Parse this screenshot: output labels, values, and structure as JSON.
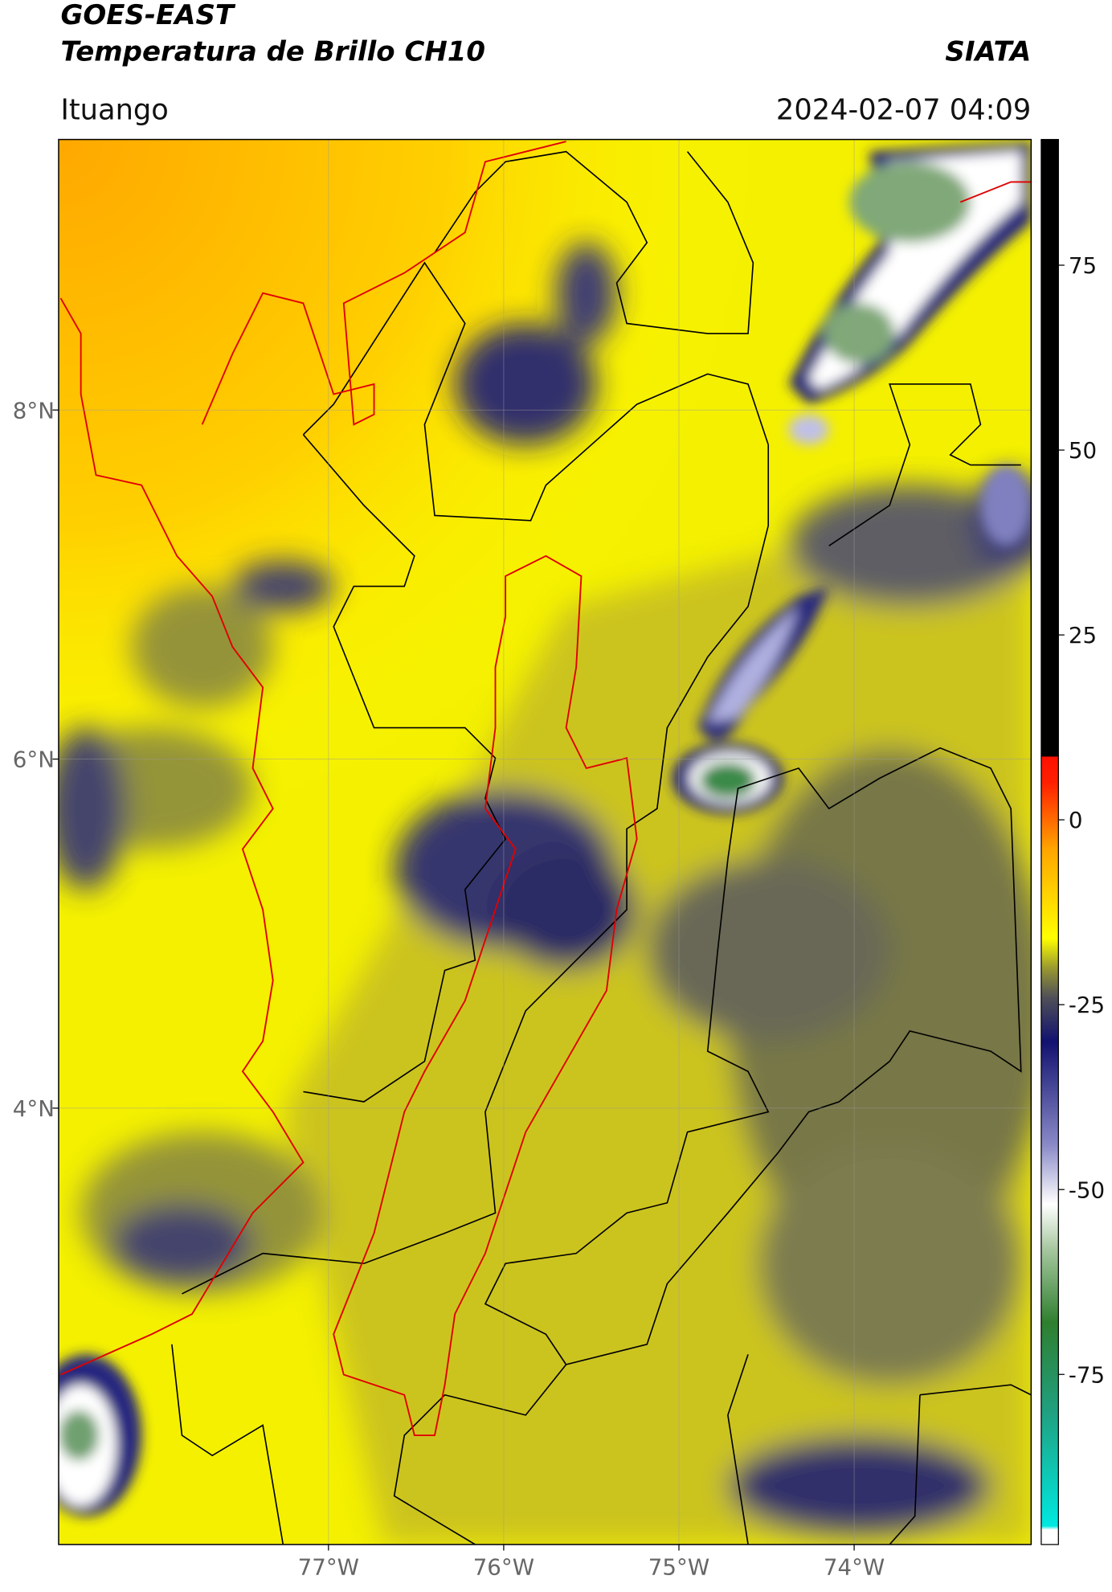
{
  "header": {
    "title": "GOES-EAST",
    "subtitle": "Temperatura de Brillo CH10",
    "brand": "SIATA",
    "location": "Ituango",
    "datetime": "2024-02-07 04:09"
  },
  "map": {
    "xlim": [
      -78.54,
      -72.99
    ],
    "ylim": [
      1.5,
      9.55
    ],
    "xticks": [
      {
        "value": -77,
        "label": "77°W"
      },
      {
        "value": -76,
        "label": "76°W"
      },
      {
        "value": -75,
        "label": "75°W"
      },
      {
        "value": -74,
        "label": "74°W"
      }
    ],
    "yticks": [
      {
        "value": 8,
        "label": "8°N"
      },
      {
        "value": 6,
        "label": "6°N"
      },
      {
        "value": 4,
        "label": "4°N"
      }
    ],
    "grid": true
  },
  "colorbar": {
    "lim": [
      -98,
      92
    ],
    "ticks": [
      -75,
      -50,
      -25,
      0,
      25,
      50,
      75
    ],
    "stops": [
      {
        "value": -98,
        "color": "#ffffff"
      },
      {
        "value": -96,
        "color": "#ffffff"
      },
      {
        "value": -95.5,
        "color": "#00e8e0"
      },
      {
        "value": -80,
        "color": "#20a080"
      },
      {
        "value": -68,
        "color": "#2f7f2f"
      },
      {
        "value": -58,
        "color": "#a8c8a0"
      },
      {
        "value": -52,
        "color": "#ffffff"
      },
      {
        "value": -44,
        "color": "#8a8ac8"
      },
      {
        "value": -30,
        "color": "#121270"
      },
      {
        "value": -24,
        "color": "#505058"
      },
      {
        "value": -20,
        "color": "#9a9a30"
      },
      {
        "value": -16,
        "color": "#ffff00"
      },
      {
        "value": -4,
        "color": "#ffa500"
      },
      {
        "value": 5,
        "color": "#ff2000"
      },
      {
        "value": 8.5,
        "color": "#ff1000"
      },
      {
        "value": 8.6,
        "color": "#000000"
      },
      {
        "value": 92,
        "color": "#000000"
      }
    ]
  }
}
